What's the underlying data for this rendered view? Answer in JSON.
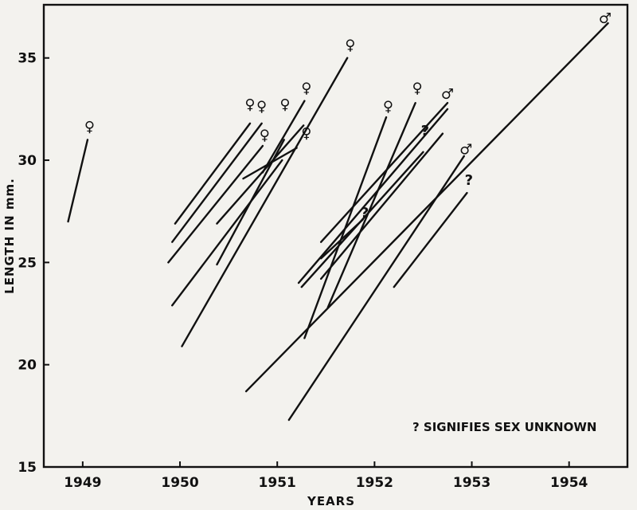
{
  "chart_data": {
    "type": "line",
    "xlabel": "YEARS",
    "ylabel": "LENGTH IN mm.",
    "annotation": "? SIGNIFIES SEX UNKNOWN",
    "xlim": [
      1948.6,
      1954.6
    ],
    "ylim": [
      15,
      37.6
    ],
    "x_ticks": [
      1949,
      1950,
      1951,
      1952,
      1953,
      1954
    ],
    "y_ticks": [
      15,
      20,
      25,
      30,
      35
    ],
    "x_tick_labels": [
      "1949",
      "1950",
      "1951",
      "1952",
      "1953",
      "1954"
    ],
    "y_tick_labels": [
      "15",
      "20",
      "25",
      "30",
      "35"
    ],
    "grid": false,
    "legend": "none",
    "colors": {
      "ink": "#111111",
      "paper": "#f3f2ee"
    },
    "sex_symbols": {
      "female": "♀",
      "male": "♂",
      "unknown": "?"
    },
    "series": [
      {
        "sex": "female",
        "x": [
          1948.85,
          1949.05
        ],
        "y": [
          27.0,
          31.0
        ]
      },
      {
        "sex": "female",
        "x": [
          1949.95,
          1950.72
        ],
        "y": [
          26.9,
          31.8
        ]
      },
      {
        "sex": "female",
        "x": [
          1949.92,
          1950.84
        ],
        "y": [
          26.0,
          31.8
        ]
      },
      {
        "sex": "female",
        "x": [
          1949.88,
          1950.85
        ],
        "y": [
          25.0,
          30.7
        ]
      },
      {
        "sex": "female",
        "x": [
          1949.92,
          1951.05
        ],
        "y": [
          22.9,
          30.0
        ]
      },
      {
        "sex": "female",
        "x": [
          1950.02,
          1951.72
        ],
        "y": [
          20.9,
          35.0
        ]
      },
      {
        "sex": "female",
        "x": [
          1950.38,
          1951.27
        ],
        "y": [
          26.9,
          31.7
        ]
      },
      {
        "sex": "female",
        "x": [
          1950.38,
          1951.07
        ],
        "y": [
          24.9,
          31.0
        ]
      },
      {
        "sex": "female",
        "x": [
          1950.65,
          1951.2
        ],
        "y": [
          29.1,
          30.6
        ]
      },
      {
        "sex": "female",
        "x": [
          1950.85,
          1951.28
        ],
        "y": [
          29.4,
          32.9
        ]
      },
      {
        "sex": "female",
        "x": [
          1951.28,
          1952.12
        ],
        "y": [
          21.3,
          32.1
        ]
      },
      {
        "sex": "female",
        "x": [
          1951.52,
          1952.42
        ],
        "y": [
          22.8,
          32.8
        ]
      },
      {
        "sex": "male",
        "x": [
          1950.68,
          1954.4
        ],
        "y": [
          18.7,
          36.7
        ]
      },
      {
        "sex": "male",
        "x": [
          1951.12,
          1952.92
        ],
        "y": [
          17.3,
          30.2
        ]
      },
      {
        "sex": "male",
        "x": [
          1951.45,
          1952.75
        ],
        "y": [
          26.0,
          32.8
        ]
      },
      {
        "sex": "unknown",
        "x": [
          1951.22,
          1952.75
        ],
        "y": [
          24.0,
          32.5
        ]
      },
      {
        "sex": "unknown",
        "x": [
          1951.25,
          1952.5
        ],
        "y": [
          23.8,
          30.4
        ]
      },
      {
        "sex": "unknown",
        "x": [
          1951.45,
          1951.88
        ],
        "y": [
          25.2,
          27.1
        ]
      },
      {
        "sex": "unknown",
        "x": [
          1951.45,
          1952.7
        ],
        "y": [
          24.2,
          31.3
        ]
      },
      {
        "sex": "unknown",
        "x": [
          1952.2,
          1952.95
        ],
        "y": [
          23.8,
          28.4
        ]
      }
    ],
    "endpoint_labels": [
      {
        "sex": "female",
        "x": 1949.07,
        "y": 31.4
      },
      {
        "sex": "female",
        "x": 1950.72,
        "y": 32.5
      },
      {
        "sex": "female",
        "x": 1950.84,
        "y": 32.4
      },
      {
        "sex": "female",
        "x": 1950.87,
        "y": 31.0
      },
      {
        "sex": "female",
        "x": 1951.08,
        "y": 32.5
      },
      {
        "sex": "female",
        "x": 1951.3,
        "y": 31.1
      },
      {
        "sex": "female",
        "x": 1951.3,
        "y": 33.3
      },
      {
        "sex": "female",
        "x": 1951.75,
        "y": 35.4
      },
      {
        "sex": "female",
        "x": 1952.14,
        "y": 32.4
      },
      {
        "sex": "female",
        "x": 1952.44,
        "y": 33.3
      },
      {
        "sex": "male",
        "x": 1952.75,
        "y": 33.0
      },
      {
        "sex": "male",
        "x": 1952.94,
        "y": 30.3
      },
      {
        "sex": "male",
        "x": 1954.37,
        "y": 36.7
      },
      {
        "sex": "unknown",
        "x": 1951.9,
        "y": 27.2
      },
      {
        "sex": "unknown",
        "x": 1952.52,
        "y": 31.2
      },
      {
        "sex": "unknown",
        "x": 1952.97,
        "y": 28.8
      }
    ]
  }
}
